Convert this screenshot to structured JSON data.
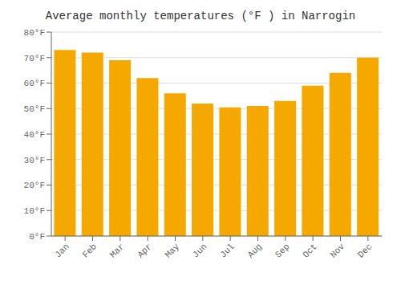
{
  "chart_data": {
    "type": "bar",
    "title": "Average monthly temperatures (°F ) in Narrogin",
    "categories": [
      "Jan",
      "Feb",
      "Mar",
      "Apr",
      "May",
      "Jun",
      "Jul",
      "Aug",
      "Sep",
      "Oct",
      "Nov",
      "Dec"
    ],
    "values": [
      73,
      72,
      69,
      62,
      56,
      52,
      50.5,
      51,
      53,
      59,
      64,
      70
    ],
    "color": "#F5A800",
    "ylim": [
      0,
      80
    ],
    "yticks": [
      {
        "value": 0,
        "label": "0°F"
      },
      {
        "value": 10,
        "label": "10°F"
      },
      {
        "value": 20,
        "label": "20°F"
      },
      {
        "value": 30,
        "label": "30°F"
      },
      {
        "value": 40,
        "label": "40°F"
      },
      {
        "value": 50,
        "label": "50°F"
      },
      {
        "value": 60,
        "label": "60°F"
      },
      {
        "value": 70,
        "label": "70°F"
      },
      {
        "value": 80,
        "label": "80°F"
      }
    ],
    "grid": true
  }
}
